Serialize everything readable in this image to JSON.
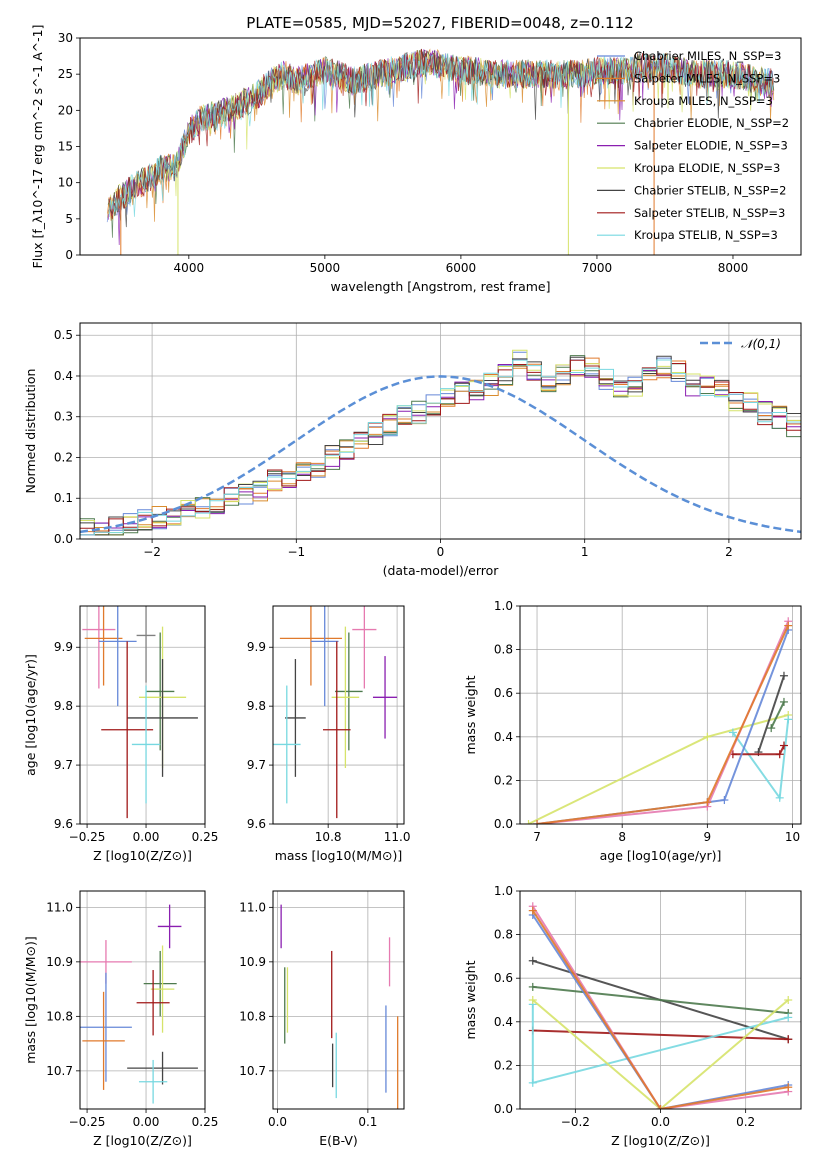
{
  "figure": {
    "title": "PLATE=0585, MJD=52027, FIBERID=0048, z=0.112"
  },
  "palette": {
    "CM": "#6688d8",
    "SM": "#e07a2c",
    "KM": "#d98c2e",
    "CE": "#4e7a4e",
    "SE": "#8a1fb0",
    "KE": "#d6e36a",
    "CS": "#444444",
    "SS": "#a01818",
    "KS": "#77d8e0",
    "pink": "#e67ab0",
    "olive": "#5f7d4f",
    "gray": "#808080",
    "normal": "#5b8fd6"
  },
  "chart_data": [
    {
      "id": "spectrum",
      "type": "line",
      "xlabel": "wavelength [Angstrom, rest frame]",
      "ylabel": "Flux [f_λ10^-17 erg cm^-2 s^-1 A^-1]",
      "xlim": [
        3200,
        8500
      ],
      "ylim": [
        0,
        30
      ],
      "xticks": [
        4000,
        5000,
        6000,
        7000,
        8000
      ],
      "yticks": [
        0,
        5,
        10,
        15,
        20,
        25,
        30
      ],
      "grid": false,
      "legend_position": "right",
      "envelope_x": [
        3400,
        3500,
        3600,
        3700,
        3800,
        3900,
        4000,
        4100,
        4200,
        4300,
        4400,
        4500,
        4600,
        4700,
        4800,
        4900,
        5000,
        5100,
        5200,
        5300,
        5400,
        5500,
        5600,
        5700,
        5800,
        5900,
        6000,
        6100,
        6200,
        6300,
        6400,
        6500,
        6600,
        6700,
        6800,
        6900,
        7000,
        7100,
        7200,
        7300,
        7400,
        7500,
        7600,
        7700,
        7800,
        7900,
        8000,
        8100,
        8200,
        8300
      ],
      "envelope_y": [
        6,
        8,
        9.5,
        10.5,
        12,
        12,
        17,
        19,
        19.5,
        20,
        21,
        22,
        24,
        25,
        24,
        25,
        25.5,
        25,
        24,
        24.5,
        25,
        25.5,
        26,
        26.5,
        26.5,
        26,
        25.5,
        25.5,
        25,
        25,
        25,
        25,
        25,
        25,
        25,
        25,
        25.5,
        25.5,
        25.5,
        26,
        26,
        26,
        25.5,
        25,
        25,
        25,
        25,
        24.5,
        24,
        24
      ],
      "series": [
        {
          "name": "Chabrier MILES, N_SSP=3",
          "color": "CM"
        },
        {
          "name": "Salpeter MILES, N_SSP=3",
          "color": "SM"
        },
        {
          "name": "Kroupa MILES, N_SSP=3",
          "color": "KM"
        },
        {
          "name": "Chabrier ELODIE, N_SSP=2",
          "color": "CE"
        },
        {
          "name": "Salpeter ELODIE, N_SSP=3",
          "color": "SE"
        },
        {
          "name": "Kroupa ELODIE, N_SSP=3",
          "color": "KE"
        },
        {
          "name": "Chabrier STELIB, N_SSP=2",
          "color": "CS"
        },
        {
          "name": "Salpeter STELIB, N_SSP=3",
          "color": "SS"
        },
        {
          "name": "Kroupa STELIB, N_SSP=3",
          "color": "KS"
        }
      ],
      "drop_lines": [
        {
          "x": 3500,
          "color": "SM"
        },
        {
          "x": 3920,
          "color": "KE"
        },
        {
          "x": 6790,
          "color": "KE"
        },
        {
          "x": 7420,
          "color": "SM"
        }
      ]
    },
    {
      "id": "residuals",
      "type": "line",
      "xlabel": "(data-model)/error",
      "ylabel": "Normed distribution",
      "xlim": [
        -2.5,
        2.5
      ],
      "ylim": [
        0,
        0.53
      ],
      "xticks": [
        -2,
        -1,
        0,
        1,
        2
      ],
      "yticks": [
        0.0,
        0.1,
        0.2,
        0.3,
        0.4,
        0.5
      ],
      "grid": true,
      "legend_position": "top-right",
      "normal_label": "𝒩(0,1)",
      "bin_width": 0.1,
      "bin_start": -2.5,
      "base_hist": [
        0.02,
        0.025,
        0.03,
        0.04,
        0.045,
        0.05,
        0.06,
        0.07,
        0.08,
        0.09,
        0.1,
        0.11,
        0.12,
        0.14,
        0.15,
        0.17,
        0.18,
        0.2,
        0.22,
        0.24,
        0.26,
        0.28,
        0.3,
        0.31,
        0.33,
        0.35,
        0.36,
        0.37,
        0.38,
        0.4,
        0.44,
        0.41,
        0.39,
        0.4,
        0.43,
        0.42,
        0.39,
        0.37,
        0.38,
        0.41,
        0.42,
        0.41,
        0.38,
        0.37,
        0.36,
        0.34,
        0.33,
        0.31,
        0.3,
        0.28
      ]
    },
    {
      "id": "age-vs-Z",
      "type": "scatter",
      "xlabel": "Z [log10(Z/Z⊙)]",
      "ylabel": "age [log10(age/yr)]",
      "xlim": [
        -0.28,
        0.25
      ],
      "ylim": [
        9.6,
        9.97
      ],
      "xticks": [
        -0.25,
        0.0,
        0.25
      ],
      "yticks": [
        9.6,
        9.7,
        9.8,
        9.9
      ],
      "grid": true,
      "points": [
        {
          "color": "pink",
          "x": -0.2,
          "xerr": 0.07,
          "y": 9.93,
          "yerr": 0.1
        },
        {
          "color": "SM",
          "x": -0.18,
          "xerr": 0.08,
          "y": 9.915,
          "yerr": 0.08
        },
        {
          "color": "CM",
          "x": -0.12,
          "xerr": 0.08,
          "y": 9.91,
          "yerr": 0.11
        },
        {
          "color": "gray",
          "x": -0.0,
          "xerr": 0.04,
          "y": 9.92,
          "yerr": 0.08
        },
        {
          "color": "CE",
          "x": 0.06,
          "xerr": 0.06,
          "y": 9.825,
          "yerr": 0.1
        },
        {
          "color": "KE",
          "x": 0.07,
          "xerr": 0.1,
          "y": 9.815,
          "yerr": 0.12
        },
        {
          "color": "CS",
          "x": 0.07,
          "xerr": 0.15,
          "y": 9.78,
          "yerr": 0.1
        },
        {
          "color": "SS",
          "x": -0.08,
          "xerr": 0.11,
          "y": 9.76,
          "yerr": 0.15
        },
        {
          "color": "KS",
          "x": 0.0,
          "xerr": 0.06,
          "y": 9.735,
          "yerr": 0.1
        }
      ]
    },
    {
      "id": "age-vs-mass",
      "type": "scatter",
      "xlabel": "mass [log10(M/M⊙)]",
      "ylabel": "",
      "xlim": [
        10.64,
        11.02
      ],
      "ylim": [
        9.6,
        9.97
      ],
      "xticks": [
        10.8,
        11.0
      ],
      "yticks": [
        9.6,
        9.7,
        9.8,
        9.9
      ],
      "grid": true,
      "points": [
        {
          "color": "SM",
          "x": 10.75,
          "xerr": 0.09,
          "y": 9.915,
          "yerr": 0.08
        },
        {
          "color": "CM",
          "x": 10.79,
          "xerr": 0.04,
          "y": 9.91,
          "yerr": 0.11
        },
        {
          "color": "pink",
          "x": 10.905,
          "xerr": 0.035,
          "y": 9.93,
          "yerr": 0.1
        },
        {
          "color": "CE",
          "x": 10.86,
          "xerr": 0.04,
          "y": 9.825,
          "yerr": 0.1
        },
        {
          "color": "KE",
          "x": 10.85,
          "xerr": 0.04,
          "y": 9.815,
          "yerr": 0.12
        },
        {
          "color": "SE",
          "x": 10.965,
          "xerr": 0.035,
          "y": 9.815,
          "yerr": 0.07
        },
        {
          "color": "CS",
          "x": 10.705,
          "xerr": 0.03,
          "y": 9.78,
          "yerr": 0.1
        },
        {
          "color": "SS",
          "x": 10.825,
          "xerr": 0.04,
          "y": 9.76,
          "yerr": 0.15
        },
        {
          "color": "KS",
          "x": 10.68,
          "xerr": 0.04,
          "y": 9.735,
          "yerr": 0.1
        }
      ]
    },
    {
      "id": "massweight-vs-age",
      "type": "line",
      "xlabel": "age [log10(age/yr)]",
      "ylabel": "mass weight",
      "xlim": [
        6.8,
        10.1
      ],
      "ylim": [
        0,
        1.0
      ],
      "xticks": [
        7,
        8,
        9,
        10
      ],
      "yticks": [
        0.0,
        0.2,
        0.4,
        0.6,
        0.8,
        1.0
      ],
      "grid": true,
      "series": [
        {
          "color": "KE",
          "x": [
            6.9,
            9.0,
            9.95
          ],
          "y": [
            0.0,
            0.4,
            0.5
          ]
        },
        {
          "color": "KS",
          "x": [
            9.3,
            9.85,
            9.95
          ],
          "y": [
            0.42,
            0.12,
            0.48
          ]
        },
        {
          "color": "CE",
          "x": [
            9.75,
            9.9
          ],
          "y": [
            0.44,
            0.56
          ]
        },
        {
          "color": "CS",
          "x": [
            9.6,
            9.9
          ],
          "y": [
            0.33,
            0.68
          ]
        },
        {
          "color": "SS",
          "x": [
            9.3,
            9.85,
            9.9
          ],
          "y": [
            0.32,
            0.32,
            0.36
          ]
        },
        {
          "color": "CM",
          "x": [
            7.0,
            9.0,
            9.2,
            9.95
          ],
          "y": [
            0.0,
            0.1,
            0.11,
            0.89
          ]
        },
        {
          "color": "pink",
          "x": [
            7.0,
            9.0,
            9.95
          ],
          "y": [
            0.0,
            0.08,
            0.93
          ]
        },
        {
          "color": "SM",
          "x": [
            7.0,
            9.0,
            9.95
          ],
          "y": [
            0.0,
            0.1,
            0.91
          ]
        }
      ]
    },
    {
      "id": "mass-vs-Z",
      "type": "scatter",
      "xlabel": "Z [log10(Z/Z⊙)]",
      "ylabel": "mass [log10(M/M⊙)]",
      "xlim": [
        -0.28,
        0.25
      ],
      "ylim": [
        10.63,
        11.03
      ],
      "xticks": [
        -0.25,
        0.0,
        0.25
      ],
      "yticks": [
        10.7,
        10.8,
        10.9,
        11.0
      ],
      "grid": true,
      "points": [
        {
          "color": "pink",
          "x": -0.17,
          "xerr": 0.11,
          "y": 10.9,
          "yerr": 0.04
        },
        {
          "color": "CM",
          "x": -0.17,
          "xerr": 0.11,
          "y": 10.78,
          "yerr": 0.1
        },
        {
          "color": "SM",
          "x": -0.18,
          "xerr": 0.09,
          "y": 10.755,
          "yerr": 0.09
        },
        {
          "color": "CE",
          "x": 0.06,
          "xerr": 0.07,
          "y": 10.86,
          "yerr": 0.06
        },
        {
          "color": "KE",
          "x": 0.07,
          "xerr": 0.05,
          "y": 10.85,
          "yerr": 0.08
        },
        {
          "color": "SE",
          "x": 0.1,
          "xerr": 0.05,
          "y": 10.965,
          "yerr": 0.04
        },
        {
          "color": "SS",
          "x": 0.03,
          "xerr": 0.07,
          "y": 10.825,
          "yerr": 0.06
        },
        {
          "color": "CS",
          "x": 0.07,
          "xerr": 0.15,
          "y": 10.705,
          "yerr": 0.03
        },
        {
          "color": "KS",
          "x": 0.03,
          "xerr": 0.06,
          "y": 10.68,
          "yerr": 0.04
        }
      ]
    },
    {
      "id": "mass-vs-ebv",
      "type": "scatter",
      "xlabel": "E(B-V)",
      "ylabel": "",
      "xlim": [
        -0.005,
        0.14
      ],
      "ylim": [
        10.63,
        11.03
      ],
      "xticks": [
        0.0,
        0.1
      ],
      "yticks": [
        10.7,
        10.8,
        10.9,
        11.0
      ],
      "grid": true,
      "points": [
        {
          "color": "SE",
          "x": 0.004,
          "xerr": 0,
          "y": 10.965,
          "yerr": 0.04
        },
        {
          "color": "CE",
          "x": 0.008,
          "xerr": 0,
          "y": 10.82,
          "yerr": 0.07
        },
        {
          "color": "KE",
          "x": 0.011,
          "xerr": 0,
          "y": 10.83,
          "yerr": 0.06
        },
        {
          "color": "SS",
          "x": 0.06,
          "xerr": 0,
          "y": 10.84,
          "yerr": 0.08
        },
        {
          "color": "CS",
          "x": 0.061,
          "xerr": 0,
          "y": 10.71,
          "yerr": 0.04
        },
        {
          "color": "KS",
          "x": 0.065,
          "xerr": 0,
          "y": 10.71,
          "yerr": 0.06
        },
        {
          "color": "pink",
          "x": 0.124,
          "xerr": 0,
          "y": 10.9,
          "yerr": 0.045
        },
        {
          "color": "CM",
          "x": 0.12,
          "xerr": 0,
          "y": 10.74,
          "yerr": 0.08
        },
        {
          "color": "SM",
          "x": 0.133,
          "xerr": 0,
          "y": 10.7,
          "yerr": 0.1
        }
      ]
    },
    {
      "id": "massweight-vs-Z",
      "type": "line",
      "xlabel": "Z [log10(Z/Z⊙)]",
      "ylabel": "mass weight",
      "xlim": [
        -0.33,
        0.33
      ],
      "ylim": [
        0,
        1.0
      ],
      "xticks": [
        -0.2,
        0.0,
        0.2
      ],
      "yticks": [
        0.0,
        0.2,
        0.4,
        0.6,
        0.8,
        1.0
      ],
      "grid": true,
      "series": [
        {
          "color": "CS",
          "x": [
            -0.3,
            0.3
          ],
          "y": [
            0.68,
            0.32
          ]
        },
        {
          "color": "CE",
          "x": [
            -0.3,
            0.3
          ],
          "y": [
            0.56,
            0.44
          ]
        },
        {
          "color": "SS",
          "x": [
            -0.3,
            0.3
          ],
          "y": [
            0.36,
            0.32
          ]
        },
        {
          "color": "KS",
          "x": [
            -0.3,
            -0.3,
            0.3
          ],
          "y": [
            0.48,
            0.12,
            0.42
          ]
        },
        {
          "color": "KE",
          "x": [
            -0.3,
            0.0,
            0.3
          ],
          "y": [
            0.5,
            0.0,
            0.5
          ]
        },
        {
          "color": "CM",
          "x": [
            -0.3,
            0.0,
            0.3
          ],
          "y": [
            0.89,
            0.0,
            0.11
          ]
        },
        {
          "color": "pink",
          "x": [
            -0.3,
            0.0,
            0.3
          ],
          "y": [
            0.93,
            0.0,
            0.08
          ]
        },
        {
          "color": "SM",
          "x": [
            -0.3,
            0.0,
            0.3
          ],
          "y": [
            0.91,
            0.0,
            0.1
          ]
        }
      ]
    }
  ]
}
